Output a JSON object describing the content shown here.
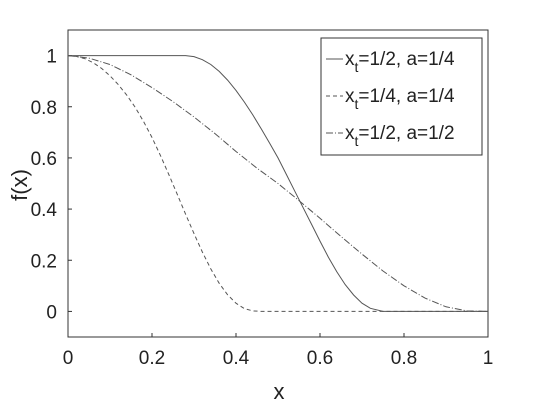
{
  "chart_data": {
    "type": "line",
    "xlabel": "x",
    "ylabel": "f(x)",
    "xlim": [
      0,
      1
    ],
    "ylim": [
      -0.1,
      1.1
    ],
    "xticks": [
      0,
      0.2,
      0.4,
      0.6,
      0.8,
      1
    ],
    "xtick_labels": [
      "0",
      "0.2",
      "0.4",
      "0.6",
      "0.8",
      "1"
    ],
    "yticks": [
      0,
      0.2,
      0.4,
      0.6,
      0.8,
      1
    ],
    "ytick_labels": [
      "0",
      "0.2",
      "0.4",
      "0.6",
      "0.8",
      "1"
    ],
    "grid": false,
    "legend_position": "top-right",
    "series": [
      {
        "name": "x_t=1/2, a=1/4",
        "legend": {
          "pre": "x",
          "sub": "t",
          "post": "=1/2, a=1/4"
        },
        "line_style": "solid",
        "color": "#555555",
        "x": [
          0,
          0.05,
          0.1,
          0.15,
          0.2,
          0.25,
          0.28,
          0.3,
          0.32,
          0.34,
          0.36,
          0.38,
          0.4,
          0.42,
          0.44,
          0.46,
          0.48,
          0.5,
          0.52,
          0.54,
          0.56,
          0.58,
          0.6,
          0.62,
          0.64,
          0.66,
          0.68,
          0.7,
          0.72,
          0.75,
          0.8,
          0.85,
          0.9,
          0.95,
          1
        ],
        "y": [
          1,
          1,
          1,
          1,
          1,
          1,
          1,
          0.996,
          0.984,
          0.965,
          0.938,
          0.904,
          0.864,
          0.818,
          0.768,
          0.714,
          0.658,
          0.6,
          0.535,
          0.47,
          0.405,
          0.34,
          0.275,
          0.212,
          0.155,
          0.105,
          0.064,
          0.032,
          0.012,
          0,
          0,
          0,
          0,
          0,
          0
        ]
      },
      {
        "name": "x_t=1/4, a=1/4",
        "legend": {
          "pre": "x",
          "sub": "t",
          "post": "=1/4, a=1/4"
        },
        "line_style": "dashed",
        "color": "#555555",
        "x": [
          0,
          0.02,
          0.04,
          0.06,
          0.08,
          0.1,
          0.12,
          0.14,
          0.16,
          0.18,
          0.2,
          0.22,
          0.24,
          0.26,
          0.28,
          0.3,
          0.32,
          0.34,
          0.36,
          0.38,
          0.4,
          0.42,
          0.44,
          0.46,
          0.5,
          0.6,
          0.7,
          0.8,
          0.9,
          1
        ],
        "y": [
          1,
          0.997,
          0.988,
          0.972,
          0.95,
          0.921,
          0.886,
          0.845,
          0.798,
          0.742,
          0.68,
          0.61,
          0.535,
          0.458,
          0.38,
          0.304,
          0.232,
          0.166,
          0.11,
          0.065,
          0.032,
          0.011,
          0.002,
          0,
          0,
          0,
          0,
          0,
          0,
          0
        ]
      },
      {
        "name": "x_t=1/2, a=1/2",
        "legend": {
          "pre": "x",
          "sub": "t",
          "post": "=1/2, a=1/2"
        },
        "line_style": "dashdot",
        "color": "#555555",
        "x": [
          0,
          0.05,
          0.1,
          0.15,
          0.2,
          0.25,
          0.3,
          0.35,
          0.4,
          0.45,
          0.5,
          0.55,
          0.6,
          0.65,
          0.7,
          0.75,
          0.8,
          0.85,
          0.9,
          0.95,
          1
        ],
        "y": [
          1,
          0.99,
          0.965,
          0.925,
          0.875,
          0.82,
          0.76,
          0.695,
          0.625,
          0.56,
          0.5,
          0.433,
          0.364,
          0.293,
          0.224,
          0.158,
          0.1,
          0.052,
          0.018,
          0.002,
          0
        ]
      }
    ]
  }
}
